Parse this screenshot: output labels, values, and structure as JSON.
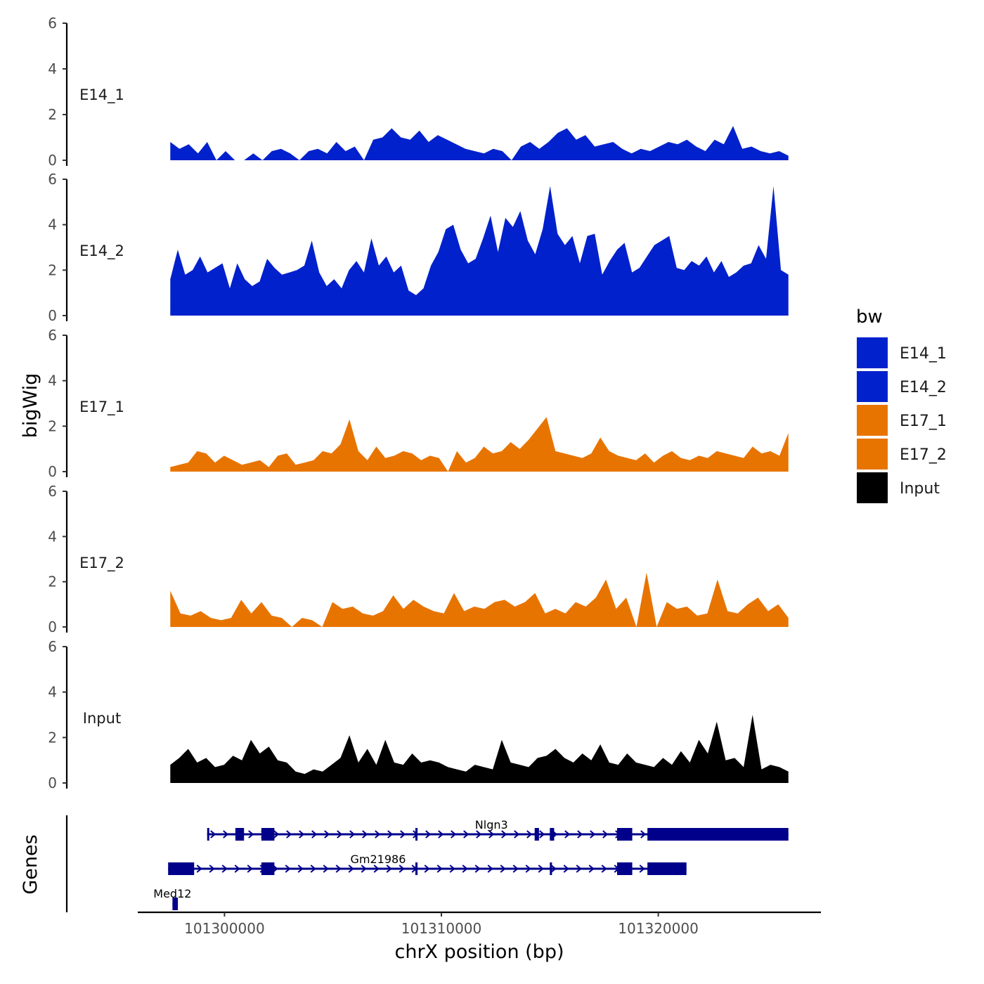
{
  "chart_data": {
    "type": "area",
    "title": "",
    "ylabel": "bigWig",
    "xlabel": "chrX position (bp)",
    "xlim": [
      101296000,
      101327500
    ],
    "ylim": [
      0,
      6
    ],
    "yticks": [
      "0",
      "2",
      "4",
      "6"
    ],
    "xticks": [
      {
        "value": 101300000,
        "label": "101300000"
      },
      {
        "value": 101310000,
        "label": "101310000"
      },
      {
        "value": 101320000,
        "label": "101320000"
      }
    ],
    "data_range": [
      101297500,
      101326000
    ],
    "legend": {
      "title": "bw",
      "position": "right",
      "entries": [
        {
          "name": "E14_1",
          "color": "#0021CC"
        },
        {
          "name": "E14_2",
          "color": "#0021CC"
        },
        {
          "name": "E17_1",
          "color": "#E87400"
        },
        {
          "name": "E17_2",
          "color": "#E87400"
        },
        {
          "name": "Input",
          "color": "#000000"
        }
      ]
    },
    "series": [
      {
        "name": "E14_1",
        "color": "#0021CC",
        "values": [
          0.8,
          0.5,
          0.7,
          0.3,
          0.8,
          0,
          0.4,
          0,
          0,
          0.3,
          0,
          0.4,
          0.5,
          0.3,
          0,
          0.4,
          0.5,
          0.3,
          0.8,
          0.4,
          0.6,
          0,
          0.9,
          1.0,
          1.4,
          1.0,
          0.9,
          1.3,
          0.8,
          1.1,
          0.9,
          0.7,
          0.5,
          0.4,
          0.3,
          0.5,
          0.4,
          0,
          0.6,
          0.8,
          0.5,
          0.8,
          1.2,
          1.4,
          0.9,
          1.1,
          0.6,
          0.7,
          0.8,
          0.5,
          0.3,
          0.5,
          0.4,
          0.6,
          0.8,
          0.7,
          0.9,
          0.6,
          0.4,
          0.9,
          0.7,
          1.5,
          0.5,
          0.6,
          0.4,
          0.3,
          0.4,
          0.2
        ]
      },
      {
        "name": "E14_2",
        "color": "#0021CC",
        "values": [
          1.6,
          2.9,
          1.8,
          2.0,
          2.6,
          1.9,
          2.1,
          2.3,
          1.2,
          2.3,
          1.6,
          1.3,
          1.5,
          2.5,
          2.1,
          1.8,
          1.9,
          2.0,
          2.2,
          3.3,
          1.9,
          1.3,
          1.6,
          1.2,
          2.0,
          2.4,
          1.9,
          3.4,
          2.2,
          2.6,
          1.9,
          2.2,
          1.1,
          0.9,
          1.2,
          2.2,
          2.8,
          3.8,
          4.0,
          2.9,
          2.3,
          2.5,
          3.4,
          4.4,
          2.8,
          4.3,
          3.9,
          4.6,
          3.3,
          2.7,
          3.8,
          5.7,
          3.6,
          3.1,
          3.5,
          2.3,
          3.5,
          3.6,
          1.8,
          2.4,
          2.9,
          3.2,
          1.9,
          2.1,
          2.6,
          3.1,
          3.3,
          3.5,
          2.1,
          2.0,
          2.4,
          2.2,
          2.6,
          1.9,
          2.4,
          1.7,
          1.9,
          2.2,
          2.3,
          3.1,
          2.5,
          5.7,
          2.0,
          1.8
        ]
      },
      {
        "name": "E17_1",
        "color": "#E87400",
        "values": [
          0.2,
          0.3,
          0.4,
          0.9,
          0.8,
          0.4,
          0.7,
          0.5,
          0.3,
          0.4,
          0.5,
          0.2,
          0.7,
          0.8,
          0.3,
          0.4,
          0.5,
          0.9,
          0.8,
          1.2,
          2.3,
          0.9,
          0.5,
          1.1,
          0.6,
          0.7,
          0.9,
          0.8,
          0.5,
          0.7,
          0.6,
          0,
          0.9,
          0.4,
          0.6,
          1.1,
          0.8,
          0.9,
          1.3,
          1.0,
          1.4,
          1.9,
          2.4,
          0.9,
          0.8,
          0.7,
          0.6,
          0.8,
          1.5,
          0.9,
          0.7,
          0.6,
          0.5,
          0.8,
          0.4,
          0.7,
          0.9,
          0.6,
          0.5,
          0.7,
          0.6,
          0.9,
          0.8,
          0.7,
          0.6,
          1.1,
          0.8,
          0.9,
          0.7,
          1.7
        ]
      },
      {
        "name": "E17_2",
        "color": "#E87400",
        "values": [
          1.6,
          0.6,
          0.5,
          0.7,
          0.4,
          0.3,
          0.4,
          1.2,
          0.6,
          1.1,
          0.5,
          0.4,
          0,
          0.4,
          0.3,
          0,
          1.1,
          0.8,
          0.9,
          0.6,
          0.5,
          0.7,
          1.4,
          0.8,
          1.2,
          0.9,
          0.7,
          0.6,
          1.5,
          0.7,
          0.9,
          0.8,
          1.1,
          1.2,
          0.9,
          1.1,
          1.5,
          0.6,
          0.8,
          0.6,
          1.1,
          0.9,
          1.3,
          2.1,
          0.8,
          1.3,
          0,
          2.4,
          0,
          1.1,
          0.8,
          0.9,
          0.5,
          0.6,
          2.1,
          0.7,
          0.6,
          1.0,
          1.3,
          0.7,
          1.0,
          0.4
        ]
      },
      {
        "name": "Input",
        "color": "#000000",
        "values": [
          0.8,
          1.1,
          1.5,
          0.9,
          1.1,
          0.7,
          0.8,
          1.2,
          1.0,
          1.9,
          1.3,
          1.6,
          1.0,
          0.9,
          0.5,
          0.4,
          0.6,
          0.5,
          0.8,
          1.1,
          2.1,
          0.9,
          1.5,
          0.8,
          1.9,
          0.9,
          0.8,
          1.3,
          0.9,
          1.0,
          0.9,
          0.7,
          0.6,
          0.5,
          0.8,
          0.7,
          0.6,
          1.9,
          0.9,
          0.8,
          0.7,
          1.1,
          1.2,
          1.5,
          1.1,
          0.9,
          1.3,
          1.0,
          1.7,
          0.9,
          0.8,
          1.3,
          0.9,
          0.8,
          0.7,
          1.1,
          0.8,
          1.4,
          0.9,
          1.9,
          1.3,
          2.7,
          1.0,
          1.1,
          0.7,
          3.0,
          0.6,
          0.8,
          0.7,
          0.5
        ]
      }
    ],
    "genes_panel": {
      "label": "Genes",
      "genes": [
        {
          "name": "Nlgn3",
          "strand": "+",
          "start": 101299200,
          "end": 101326000,
          "exons": [
            [
              101299200,
              101299280
            ],
            [
              101300500,
              101300900
            ],
            [
              101301700,
              101302300
            ],
            [
              101308800,
              101308900
            ],
            [
              101314300,
              101314500
            ],
            [
              101315000,
              101315200
            ],
            [
              101318100,
              101318800
            ],
            [
              101319500,
              101326000
            ]
          ]
        },
        {
          "name": "Gm21986",
          "strand": "+",
          "start": 101297400,
          "end": 101321300,
          "exons": [
            [
              101297400,
              101298600
            ],
            [
              101301700,
              101302300
            ],
            [
              101308800,
              101308900
            ],
            [
              101315000,
              101315100
            ],
            [
              101318100,
              101318800
            ],
            [
              101319500,
              101321300
            ]
          ]
        },
        {
          "name": "Med12",
          "strand": "+",
          "start": 101297600,
          "end": 101297850,
          "exons": [
            [
              101297600,
              101297850
            ]
          ]
        }
      ]
    }
  }
}
